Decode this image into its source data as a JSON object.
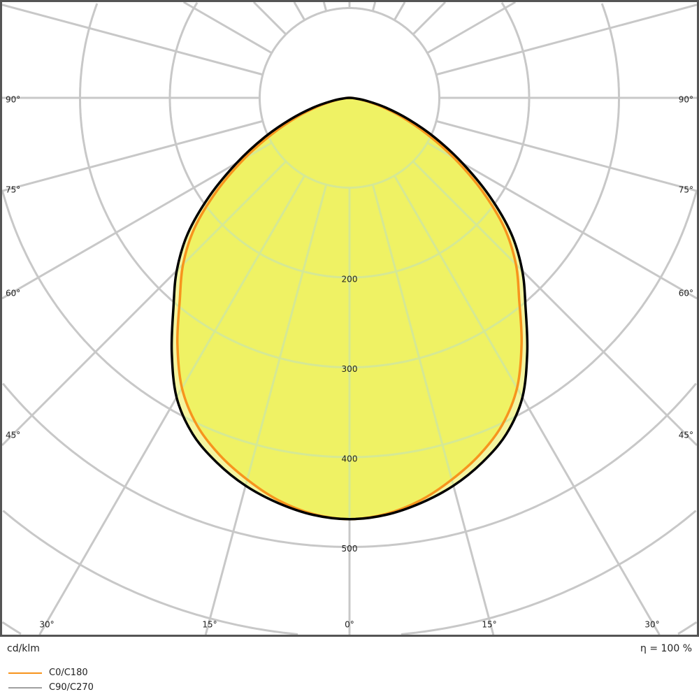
{
  "chart_data": {
    "type": "polar-line",
    "unit_label": "cd/klm",
    "efficiency_label": "η = 100 %",
    "radial_ticks": [
      200,
      300,
      400,
      500
    ],
    "radial_grid": [
      100,
      200,
      300,
      400,
      500,
      600,
      700
    ],
    "angle_labels_side": [
      "90°",
      "75°",
      "60°",
      "45°"
    ],
    "angle_labels_bottom": [
      "30°",
      "15°",
      "0°",
      "15°",
      "30°"
    ],
    "angles_deg": [
      0,
      5,
      10,
      15,
      20,
      25,
      30,
      35,
      40,
      45,
      50,
      55,
      60,
      65,
      70,
      75,
      80,
      85,
      90
    ],
    "series": [
      {
        "name": "C0/C180",
        "color": "#f7941d",
        "values": [
          469,
          465,
          455,
          440,
          423,
          402,
          373,
          334,
          294,
          262,
          225,
          180,
          135,
          95,
          62,
          36,
          17,
          5,
          0
        ]
      },
      {
        "name": "C90/C270",
        "color": "#000000",
        "legend_color": "#a0a0a0",
        "values": [
          469,
          466,
          458,
          447,
          432,
          413,
          385,
          345,
          305,
          272,
          235,
          190,
          145,
          105,
          70,
          42,
          20,
          6,
          0
        ]
      }
    ],
    "fill_colors": {
      "inner": "#eff264",
      "outer": "#f3f5a0"
    },
    "grid_color": "#c8c8c8"
  }
}
